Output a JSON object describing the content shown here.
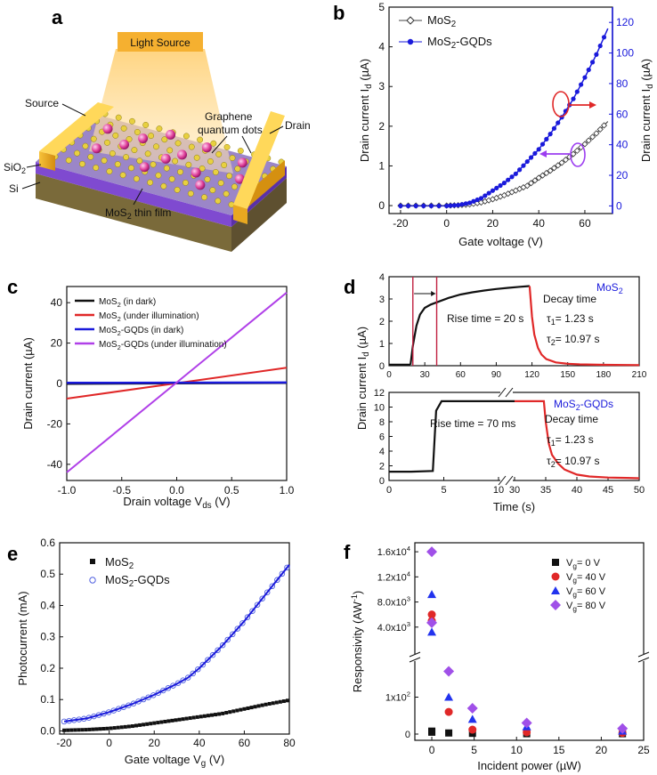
{
  "panels": {
    "a": "a",
    "b": "b",
    "c": "c",
    "d": "d",
    "e": "e",
    "f": "f"
  },
  "device": {
    "light_source": "Light Source",
    "gqd": [
      "Graphene",
      "quantum dots"
    ],
    "source": "Source",
    "drain": "Drain",
    "sio2": "SiO",
    "sio2_sub": "2",
    "si": "Si",
    "mos2": "MoS",
    "mos2_sub": "2",
    "mos2_rest": " thin film"
  },
  "colors": {
    "black": "#111111",
    "blue": "#1a1adb",
    "red": "#e02828",
    "purple": "#b040e8",
    "violet": "#9c3df0"
  },
  "chart_data": [
    {
      "id": "b",
      "type": "line",
      "xlabel": "Gate voltage (V)",
      "ylabel_left": "Drain current I",
      "ylabel_left_sub": "d",
      "ylabel_left_unit": " (µA)",
      "ylabel_right": "Drain current I",
      "ylabel_right_sub": "d",
      "ylabel_right_unit": " (µA)",
      "xlim": [
        -25,
        72
      ],
      "ylim_left": [
        -0.2,
        5
      ],
      "ylim_right": [
        -5,
        130
      ],
      "xticks": [
        -20,
        0,
        20,
        40,
        60
      ],
      "yticks_left": [
        0,
        1,
        2,
        3,
        4,
        5
      ],
      "yticks_right": [
        0,
        20,
        40,
        60,
        80,
        100,
        120
      ],
      "legend": [
        {
          "name_main": "MoS",
          "name_sub": "2",
          "name_rest": ""
        },
        {
          "name_main": "MoS",
          "name_sub": "2",
          "name_rest": "-GQDs"
        }
      ],
      "series": [
        {
          "axis": "left",
          "x": [
            -20,
            -10,
            0,
            5,
            10,
            15,
            20,
            25,
            30,
            35,
            40,
            45,
            50,
            55,
            60,
            65,
            70
          ],
          "y": [
            0,
            0,
            0,
            0.01,
            0.03,
            0.08,
            0.16,
            0.26,
            0.38,
            0.5,
            0.7,
            0.88,
            1.08,
            1.3,
            1.55,
            1.82,
            2.12
          ]
        },
        {
          "axis": "right",
          "x": [
            -20,
            -10,
            0,
            5,
            10,
            15,
            20,
            25,
            30,
            35,
            40,
            45,
            50,
            55,
            60,
            65,
            70
          ],
          "y": [
            0,
            0,
            0,
            0.5,
            2,
            5,
            10,
            15,
            21,
            29,
            37,
            47,
            58,
            70,
            84,
            99,
            116
          ]
        }
      ]
    },
    {
      "id": "c",
      "type": "line",
      "xlabel": "Drain voltage V",
      "xlabel_sub": "ds",
      "xlabel_unit": " (V)",
      "ylabel": "Drain current (µA)",
      "xlim": [
        -1,
        1
      ],
      "ylim": [
        -48,
        48
      ],
      "xticks": [
        -1.0,
        -0.5,
        0.0,
        0.5,
        1.0
      ],
      "xtick_labels": [
        "-1.0",
        "-0.5",
        "0.0",
        "0.5",
        "1.0"
      ],
      "yticks": [
        -40,
        -20,
        0,
        20,
        40
      ],
      "legend": [
        {
          "main": "MoS",
          "sub": "2",
          "rest": " (in dark)"
        },
        {
          "main": "MoS",
          "sub": "2",
          "rest": " (under illumination)"
        },
        {
          "main": "MoS",
          "sub": "2",
          "rest": "-GQDs (in dark)"
        },
        {
          "main": "MoS",
          "sub": "2",
          "rest": "-GQDs (under illumination)"
        }
      ],
      "series": [
        {
          "x": [
            -1,
            1
          ],
          "y": [
            -0.2,
            0.2
          ]
        },
        {
          "x": [
            -1,
            1
          ],
          "y": [
            -7.5,
            7.8
          ]
        },
        {
          "x": [
            -1,
            1
          ],
          "y": [
            0.3,
            0.5
          ]
        },
        {
          "x": [
            -1,
            1
          ],
          "y": [
            -44,
            45
          ]
        }
      ]
    },
    {
      "id": "d",
      "type": "line",
      "ylabel": "Drain current I",
      "ylabel_sub": "d",
      "ylabel_unit": " (µA)",
      "xlabel": "Time (s)",
      "top": {
        "xlim": [
          0,
          210
        ],
        "ylim": [
          0,
          4
        ],
        "xticks": [
          0,
          30,
          60,
          90,
          120,
          150,
          180,
          210
        ],
        "yticks": [
          0,
          1,
          2,
          3,
          4
        ],
        "label_main": "MoS",
        "label_sub": "2",
        "rise": "Rise time = 20 s",
        "decay": "Decay time",
        "tau1": "τ",
        "tau1_sub": "1",
        "tau1_val": "= 1.23 s",
        "tau2": "τ",
        "tau2_sub": "2",
        "tau2_val": "= 10.97 s",
        "markers": [
          20,
          40
        ],
        "rise_curve": {
          "x": [
            18,
            20,
            23,
            26,
            30,
            35,
            40,
            50,
            60,
            70,
            80,
            90,
            100,
            110,
            118
          ],
          "y": [
            0.05,
            0.9,
            1.8,
            2.3,
            2.6,
            2.75,
            2.85,
            3.05,
            3.2,
            3.3,
            3.38,
            3.45,
            3.5,
            3.55,
            3.58
          ]
        },
        "decay_curve": {
          "x": [
            118,
            120,
            122,
            125,
            128,
            132,
            140,
            150,
            160,
            180,
            210
          ],
          "y": [
            3.58,
            2.2,
            1.4,
            0.8,
            0.5,
            0.3,
            0.15,
            0.09,
            0.06,
            0.04,
            0.03
          ]
        }
      },
      "bottom": {
        "ylim": [
          0,
          12
        ],
        "xticks": [
          0,
          5,
          10,
          30,
          35,
          40,
          45,
          50
        ],
        "yticks": [
          0,
          2,
          4,
          6,
          8,
          10,
          12
        ],
        "label_main": "MoS",
        "label_sub": "2",
        "label_rest": "-GQDs",
        "rise": "Rise time = 70 ms",
        "decay": "Decay time",
        "tau1": "τ",
        "tau1_sub": "1",
        "tau1_val": "= 1.23 s",
        "tau2": "τ",
        "tau2_sub": "2",
        "tau2_val": "= 10.97 s",
        "rise_curve": {
          "x": [
            0,
            2,
            4,
            4.3,
            4.8,
            6,
            8,
            10
          ],
          "y": [
            1.2,
            1.2,
            1.3,
            9.5,
            10.8,
            10.8,
            10.8,
            10.8
          ]
        },
        "decay_curve": {
          "x": [
            30,
            33,
            34.7,
            35,
            35.5,
            36,
            37,
            38,
            40,
            42,
            45,
            48,
            50
          ],
          "y": [
            10.8,
            10.8,
            10.8,
            8,
            5,
            3.5,
            2.3,
            1.5,
            0.8,
            0.55,
            0.4,
            0.35,
            0.3
          ]
        }
      }
    },
    {
      "id": "e",
      "type": "scatter",
      "xlabel": "Gate voltage V",
      "xlabel_sub": "g",
      "xlabel_unit": " (V)",
      "ylabel": "Photocurrent (mA)",
      "xlim": [
        -22,
        80
      ],
      "ylim": [
        -0.01,
        0.6
      ],
      "xticks": [
        -20,
        0,
        20,
        40,
        60,
        80
      ],
      "yticks": [
        0.0,
        0.1,
        0.2,
        0.3,
        0.4,
        0.5,
        0.6
      ],
      "ytick_labels": [
        "0.0",
        "0.1",
        "0.2",
        "0.3",
        "0.4",
        "0.5",
        "0.6"
      ],
      "legend": [
        {
          "main": "MoS",
          "sub": "2",
          "rest": ""
        },
        {
          "main": "MoS",
          "sub": "2",
          "rest": "-GQDs"
        }
      ],
      "series": [
        {
          "x": [
            -20,
            -10,
            0,
            10,
            20,
            30,
            40,
            50,
            60,
            70,
            80
          ],
          "y": [
            0.002,
            0.004,
            0.008,
            0.015,
            0.025,
            0.035,
            0.045,
            0.055,
            0.07,
            0.085,
            0.098
          ]
        },
        {
          "x": [
            -20,
            -10,
            0,
            10,
            20,
            30,
            35,
            40,
            50,
            60,
            70,
            80
          ],
          "y": [
            0.03,
            0.04,
            0.06,
            0.085,
            0.115,
            0.15,
            0.17,
            0.2,
            0.27,
            0.35,
            0.44,
            0.53
          ]
        }
      ]
    },
    {
      "id": "f",
      "type": "scatter",
      "xlabel": "Incident power (µW)",
      "ylabel": "Responsivity (AW",
      "ylabel_sup": "-1",
      "ylabel_close": ")",
      "xlim": [
        -2,
        25
      ],
      "xticks": [
        0,
        5,
        10,
        15,
        20,
        25
      ],
      "yticks_upper": [
        {
          "m": "4.0x10",
          "e": "3"
        },
        {
          "m": "8.0x10",
          "e": "3"
        },
        {
          "m": "1.2x10",
          "e": "4"
        },
        {
          "m": "1.6x10",
          "e": "4"
        }
      ],
      "yticks_lower": [
        {
          "m": "0",
          "e": ""
        },
        {
          "m": "1x10",
          "e": "2"
        }
      ],
      "legend": [
        {
          "main": "V",
          "sub": "g",
          "rest": "= 0 V"
        },
        {
          "main": "V",
          "sub": "g",
          "rest": "= 40 V"
        },
        {
          "main": "V",
          "sub": "g",
          "rest": "= 60 V"
        },
        {
          "main": "V",
          "sub": "g",
          "rest": "= 80 V"
        }
      ],
      "series": [
        {
          "marker": "square",
          "x": [
            0,
            0,
            2,
            4.8,
            11.2,
            22.5
          ],
          "y": [
            5,
            8,
            3,
            2,
            1,
            1
          ]
        },
        {
          "marker": "circle",
          "x": [
            0,
            0,
            2,
            4.8,
            11.2,
            22.5
          ],
          "y": [
            6000,
            5000,
            60,
            12,
            5,
            3
          ]
        },
        {
          "marker": "triangle",
          "x": [
            0,
            0,
            2,
            4.8,
            11.2,
            22.5
          ],
          "y": [
            9200,
            3200,
            100,
            40,
            20,
            8
          ]
        },
        {
          "marker": "diamond",
          "x": [
            0,
            0,
            2,
            4.8,
            11.2,
            22.5
          ],
          "y": [
            16000,
            4700,
            170,
            70,
            30,
            15
          ]
        }
      ]
    }
  ]
}
